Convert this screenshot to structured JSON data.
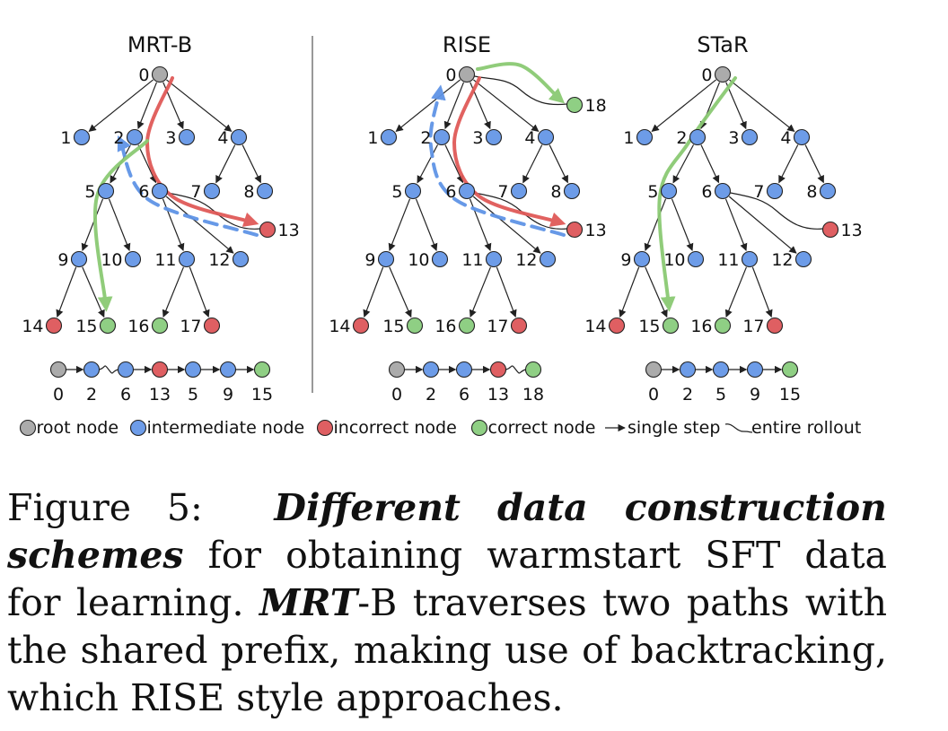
{
  "colors": {
    "root": "#ababab",
    "intermediate": "#6d9ce8",
    "incorrect": "#df5f62",
    "correct": "#8fcf84",
    "red_path": "#e05a58",
    "green_path": "#8bca73",
    "blue_path": "#5f94e6",
    "edge": "#222222"
  },
  "panels": [
    {
      "title": "MRT-B",
      "node_types": {
        "0": "root",
        "1": "intermediate",
        "2": "intermediate",
        "3": "intermediate",
        "4": "intermediate",
        "5": "intermediate",
        "6": "intermediate",
        "7": "intermediate",
        "8": "intermediate",
        "9": "intermediate",
        "10": "intermediate",
        "11": "intermediate",
        "12": "intermediate",
        "13": "incorrect",
        "14": "incorrect",
        "15": "correct",
        "16": "correct",
        "17": "incorrect"
      },
      "edges": [
        [
          "0",
          "1"
        ],
        [
          "0",
          "2"
        ],
        [
          "0",
          "3"
        ],
        [
          "0",
          "4"
        ],
        [
          "2",
          "5"
        ],
        [
          "2",
          "6"
        ],
        [
          "4",
          "7"
        ],
        [
          "4",
          "8"
        ],
        [
          "5",
          "9"
        ],
        [
          "5",
          "10"
        ],
        [
          "6",
          "11"
        ],
        [
          "6",
          "12"
        ],
        [
          "9",
          "14"
        ],
        [
          "9",
          "15"
        ],
        [
          "11",
          "16"
        ],
        [
          "11",
          "17"
        ]
      ],
      "rollouts": [
        [
          "6",
          "13"
        ]
      ],
      "paths": [
        {
          "color": "red",
          "style": "solid",
          "route": [
            "0",
            "2",
            "6",
            "13"
          ]
        },
        {
          "color": "blue",
          "style": "dashed",
          "route": [
            "13",
            "6",
            "2"
          ]
        },
        {
          "color": "green",
          "style": "solid",
          "route": [
            "2",
            "5",
            "15"
          ]
        }
      ],
      "sequence": {
        "nodes": [
          "root",
          "intermediate",
          "intermediate",
          "incorrect",
          "intermediate",
          "intermediate",
          "correct"
        ],
        "links": [
          "step",
          "rollout",
          "step",
          "step",
          "step",
          "step"
        ],
        "labels": [
          "0",
          "2",
          "6",
          "13",
          "5",
          "9",
          "15"
        ]
      }
    },
    {
      "title": "RISE",
      "node_types": {
        "0": "root",
        "1": "intermediate",
        "2": "intermediate",
        "3": "intermediate",
        "4": "intermediate",
        "5": "intermediate",
        "6": "intermediate",
        "7": "intermediate",
        "8": "intermediate",
        "9": "intermediate",
        "10": "intermediate",
        "11": "intermediate",
        "12": "intermediate",
        "13": "incorrect",
        "14": "incorrect",
        "15": "correct",
        "16": "correct",
        "17": "incorrect",
        "18": "correct"
      },
      "edges": [
        [
          "0",
          "1"
        ],
        [
          "0",
          "2"
        ],
        [
          "0",
          "3"
        ],
        [
          "0",
          "4"
        ],
        [
          "2",
          "5"
        ],
        [
          "2",
          "6"
        ],
        [
          "4",
          "7"
        ],
        [
          "4",
          "8"
        ],
        [
          "5",
          "9"
        ],
        [
          "5",
          "10"
        ],
        [
          "6",
          "11"
        ],
        [
          "6",
          "12"
        ],
        [
          "9",
          "14"
        ],
        [
          "9",
          "15"
        ],
        [
          "11",
          "16"
        ],
        [
          "11",
          "17"
        ]
      ],
      "rollouts": [
        [
          "6",
          "13"
        ],
        [
          "0",
          "18"
        ]
      ],
      "paths": [
        {
          "color": "red",
          "style": "solid",
          "route": [
            "0",
            "2",
            "6",
            "13"
          ]
        },
        {
          "color": "blue",
          "style": "dashed",
          "route": [
            "13",
            "6",
            "2",
            "0"
          ]
        },
        {
          "color": "green",
          "style": "solid",
          "route": [
            "0",
            "18"
          ]
        }
      ],
      "sequence": {
        "nodes": [
          "root",
          "intermediate",
          "intermediate",
          "incorrect",
          "correct"
        ],
        "links": [
          "step",
          "step",
          "step",
          "rollout"
        ],
        "labels": [
          "0",
          "2",
          "6",
          "13",
          "18"
        ]
      }
    },
    {
      "title": "STaR",
      "node_types": {
        "0": "root",
        "1": "intermediate",
        "2": "intermediate",
        "3": "intermediate",
        "4": "intermediate",
        "5": "intermediate",
        "6": "intermediate",
        "7": "intermediate",
        "8": "intermediate",
        "9": "intermediate",
        "10": "intermediate",
        "11": "intermediate",
        "12": "intermediate",
        "13": "incorrect",
        "14": "incorrect",
        "15": "correct",
        "16": "correct",
        "17": "incorrect"
      },
      "edges": [
        [
          "0",
          "1"
        ],
        [
          "0",
          "2"
        ],
        [
          "0",
          "3"
        ],
        [
          "0",
          "4"
        ],
        [
          "2",
          "5"
        ],
        [
          "2",
          "6"
        ],
        [
          "4",
          "7"
        ],
        [
          "4",
          "8"
        ],
        [
          "5",
          "9"
        ],
        [
          "5",
          "10"
        ],
        [
          "6",
          "11"
        ],
        [
          "6",
          "12"
        ],
        [
          "9",
          "14"
        ],
        [
          "9",
          "15"
        ],
        [
          "11",
          "16"
        ],
        [
          "11",
          "17"
        ]
      ],
      "rollouts": [
        [
          "6",
          "13"
        ]
      ],
      "paths": [
        {
          "color": "green",
          "style": "solid",
          "route": [
            "0",
            "2",
            "5",
            "15"
          ]
        }
      ],
      "sequence": {
        "nodes": [
          "root",
          "intermediate",
          "intermediate",
          "intermediate",
          "correct"
        ],
        "links": [
          "step",
          "step",
          "step",
          "step"
        ],
        "labels": [
          "0",
          "2",
          "5",
          "9",
          "15"
        ]
      }
    }
  ],
  "legend": {
    "root": "root node",
    "intermediate": "intermediate node",
    "incorrect": "incorrect node",
    "correct": "correct node",
    "step": "single step",
    "rollout": "entire rollout"
  },
  "caption": {
    "prefix": "Figure 5:",
    "title": "Different data construction schemes",
    "body_1": " for obtaining warmstart SFT data for learning. ",
    "method_bold": "MRT",
    "method_rest": "-B traverses two paths with the shared prefix, making use of backtracking, which RISE style approaches."
  }
}
